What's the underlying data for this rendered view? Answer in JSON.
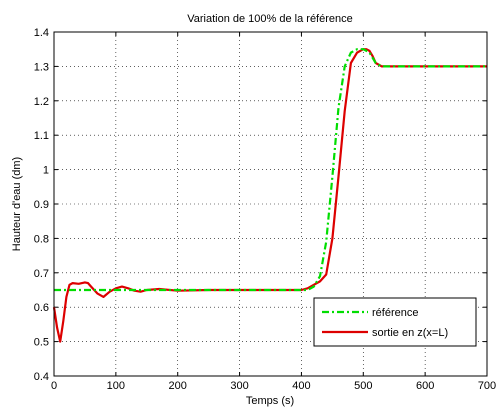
{
  "chart_data": {
    "type": "line",
    "title": "Variation de 100% de la référence",
    "xlabel": "Temps (s)",
    "ylabel": "Hauteur d'eau (dm)",
    "xlim": [
      0,
      700
    ],
    "ylim": [
      0.4,
      1.4
    ],
    "xticks": [
      0,
      100,
      200,
      300,
      400,
      500,
      600,
      700
    ],
    "yticks": [
      0.4,
      0.5,
      0.6,
      0.7,
      0.8,
      0.9,
      1.0,
      1.1,
      1.2,
      1.3,
      1.4
    ],
    "xtick_labels": [
      "0",
      "100",
      "200",
      "300",
      "400",
      "500",
      "600",
      "700"
    ],
    "ytick_labels": [
      "0.4",
      "0.5",
      "0.6",
      "0.7",
      "0.8",
      "0.9",
      "1",
      "1.1",
      "1.2",
      "1.3",
      "1.4"
    ],
    "grid": true,
    "legend_position": "bottom-right",
    "series": [
      {
        "name": "référence",
        "color": "#00dd00",
        "style": "dash-dot",
        "x": [
          0,
          100,
          200,
          300,
          400,
          410,
          420,
          430,
          440,
          450,
          460,
          470,
          480,
          490,
          500,
          510,
          520,
          530,
          550,
          600,
          700
        ],
        "y": [
          0.65,
          0.65,
          0.65,
          0.65,
          0.65,
          0.65,
          0.66,
          0.69,
          0.79,
          0.98,
          1.18,
          1.3,
          1.34,
          1.35,
          1.35,
          1.34,
          1.31,
          1.3,
          1.3,
          1.3,
          1.3
        ]
      },
      {
        "name": "sortie en z(x=L)",
        "color": "#dd0000",
        "style": "solid",
        "x": [
          0,
          5,
          10,
          15,
          20,
          25,
          30,
          40,
          50,
          55,
          60,
          70,
          80,
          90,
          100,
          110,
          120,
          130,
          140,
          150,
          170,
          200,
          250,
          300,
          350,
          400,
          410,
          420,
          430,
          440,
          450,
          460,
          470,
          480,
          490,
          500,
          505,
          510,
          515,
          520,
          530,
          550,
          600,
          700
        ],
        "y": [
          0.6,
          0.54,
          0.5,
          0.56,
          0.63,
          0.665,
          0.67,
          0.668,
          0.672,
          0.67,
          0.66,
          0.64,
          0.63,
          0.645,
          0.655,
          0.66,
          0.655,
          0.648,
          0.645,
          0.65,
          0.653,
          0.648,
          0.65,
          0.65,
          0.65,
          0.65,
          0.655,
          0.665,
          0.675,
          0.695,
          0.8,
          0.98,
          1.17,
          1.31,
          1.34,
          1.35,
          1.35,
          1.345,
          1.33,
          1.31,
          1.3,
          1.3,
          1.3,
          1.3
        ]
      }
    ]
  }
}
